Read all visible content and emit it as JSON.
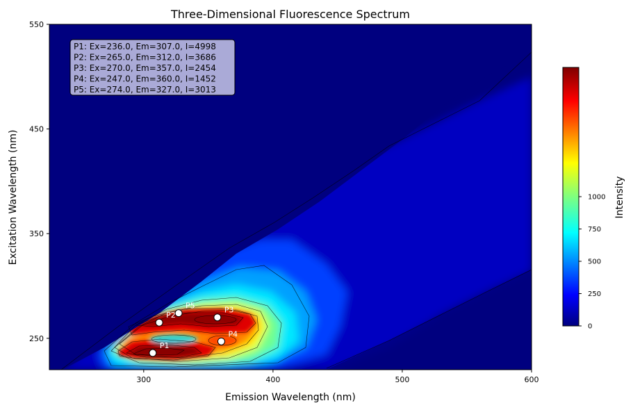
{
  "chart_data": {
    "type": "heatmap",
    "title": "Three-Dimensional Fluorescence Spectrum",
    "xlabel": "Emission Wavelength (nm)",
    "ylabel": "Excitation Wavelength (nm)",
    "xlim": [
      227,
      600
    ],
    "ylim": [
      220,
      550
    ],
    "x_ticks": [
      300,
      400,
      500,
      600
    ],
    "y_ticks": [
      250,
      350,
      450,
      550
    ],
    "colorbar": {
      "label": "Intensity",
      "ticks": [
        0,
        250,
        500,
        750,
        1000
      ],
      "range": [
        0,
        2000
      ],
      "colormap": "jet"
    },
    "peaks": [
      {
        "label": "P1",
        "ex": 236.0,
        "em": 307.0,
        "intensity": 4998
      },
      {
        "label": "P2",
        "ex": 265.0,
        "em": 312.0,
        "intensity": 3686
      },
      {
        "label": "P3",
        "ex": 270.0,
        "em": 357.0,
        "intensity": 2454
      },
      {
        "label": "P4",
        "ex": 247.0,
        "em": 360.0,
        "intensity": 1452
      },
      {
        "label": "P5",
        "ex": 274.0,
        "em": 327.0,
        "intensity": 3013
      }
    ],
    "annotation_lines": [
      "P1: Ex=236.0, Em=307.0, I=4998",
      "P2: Ex=265.0, Em=312.0, I=3686",
      "P3: Ex=270.0, Em=357.0, I=2454",
      "P4: Ex=247.0, Em=360.0, I=1452",
      "P5: Ex=274.0, Em=327.0, I=3013"
    ]
  }
}
